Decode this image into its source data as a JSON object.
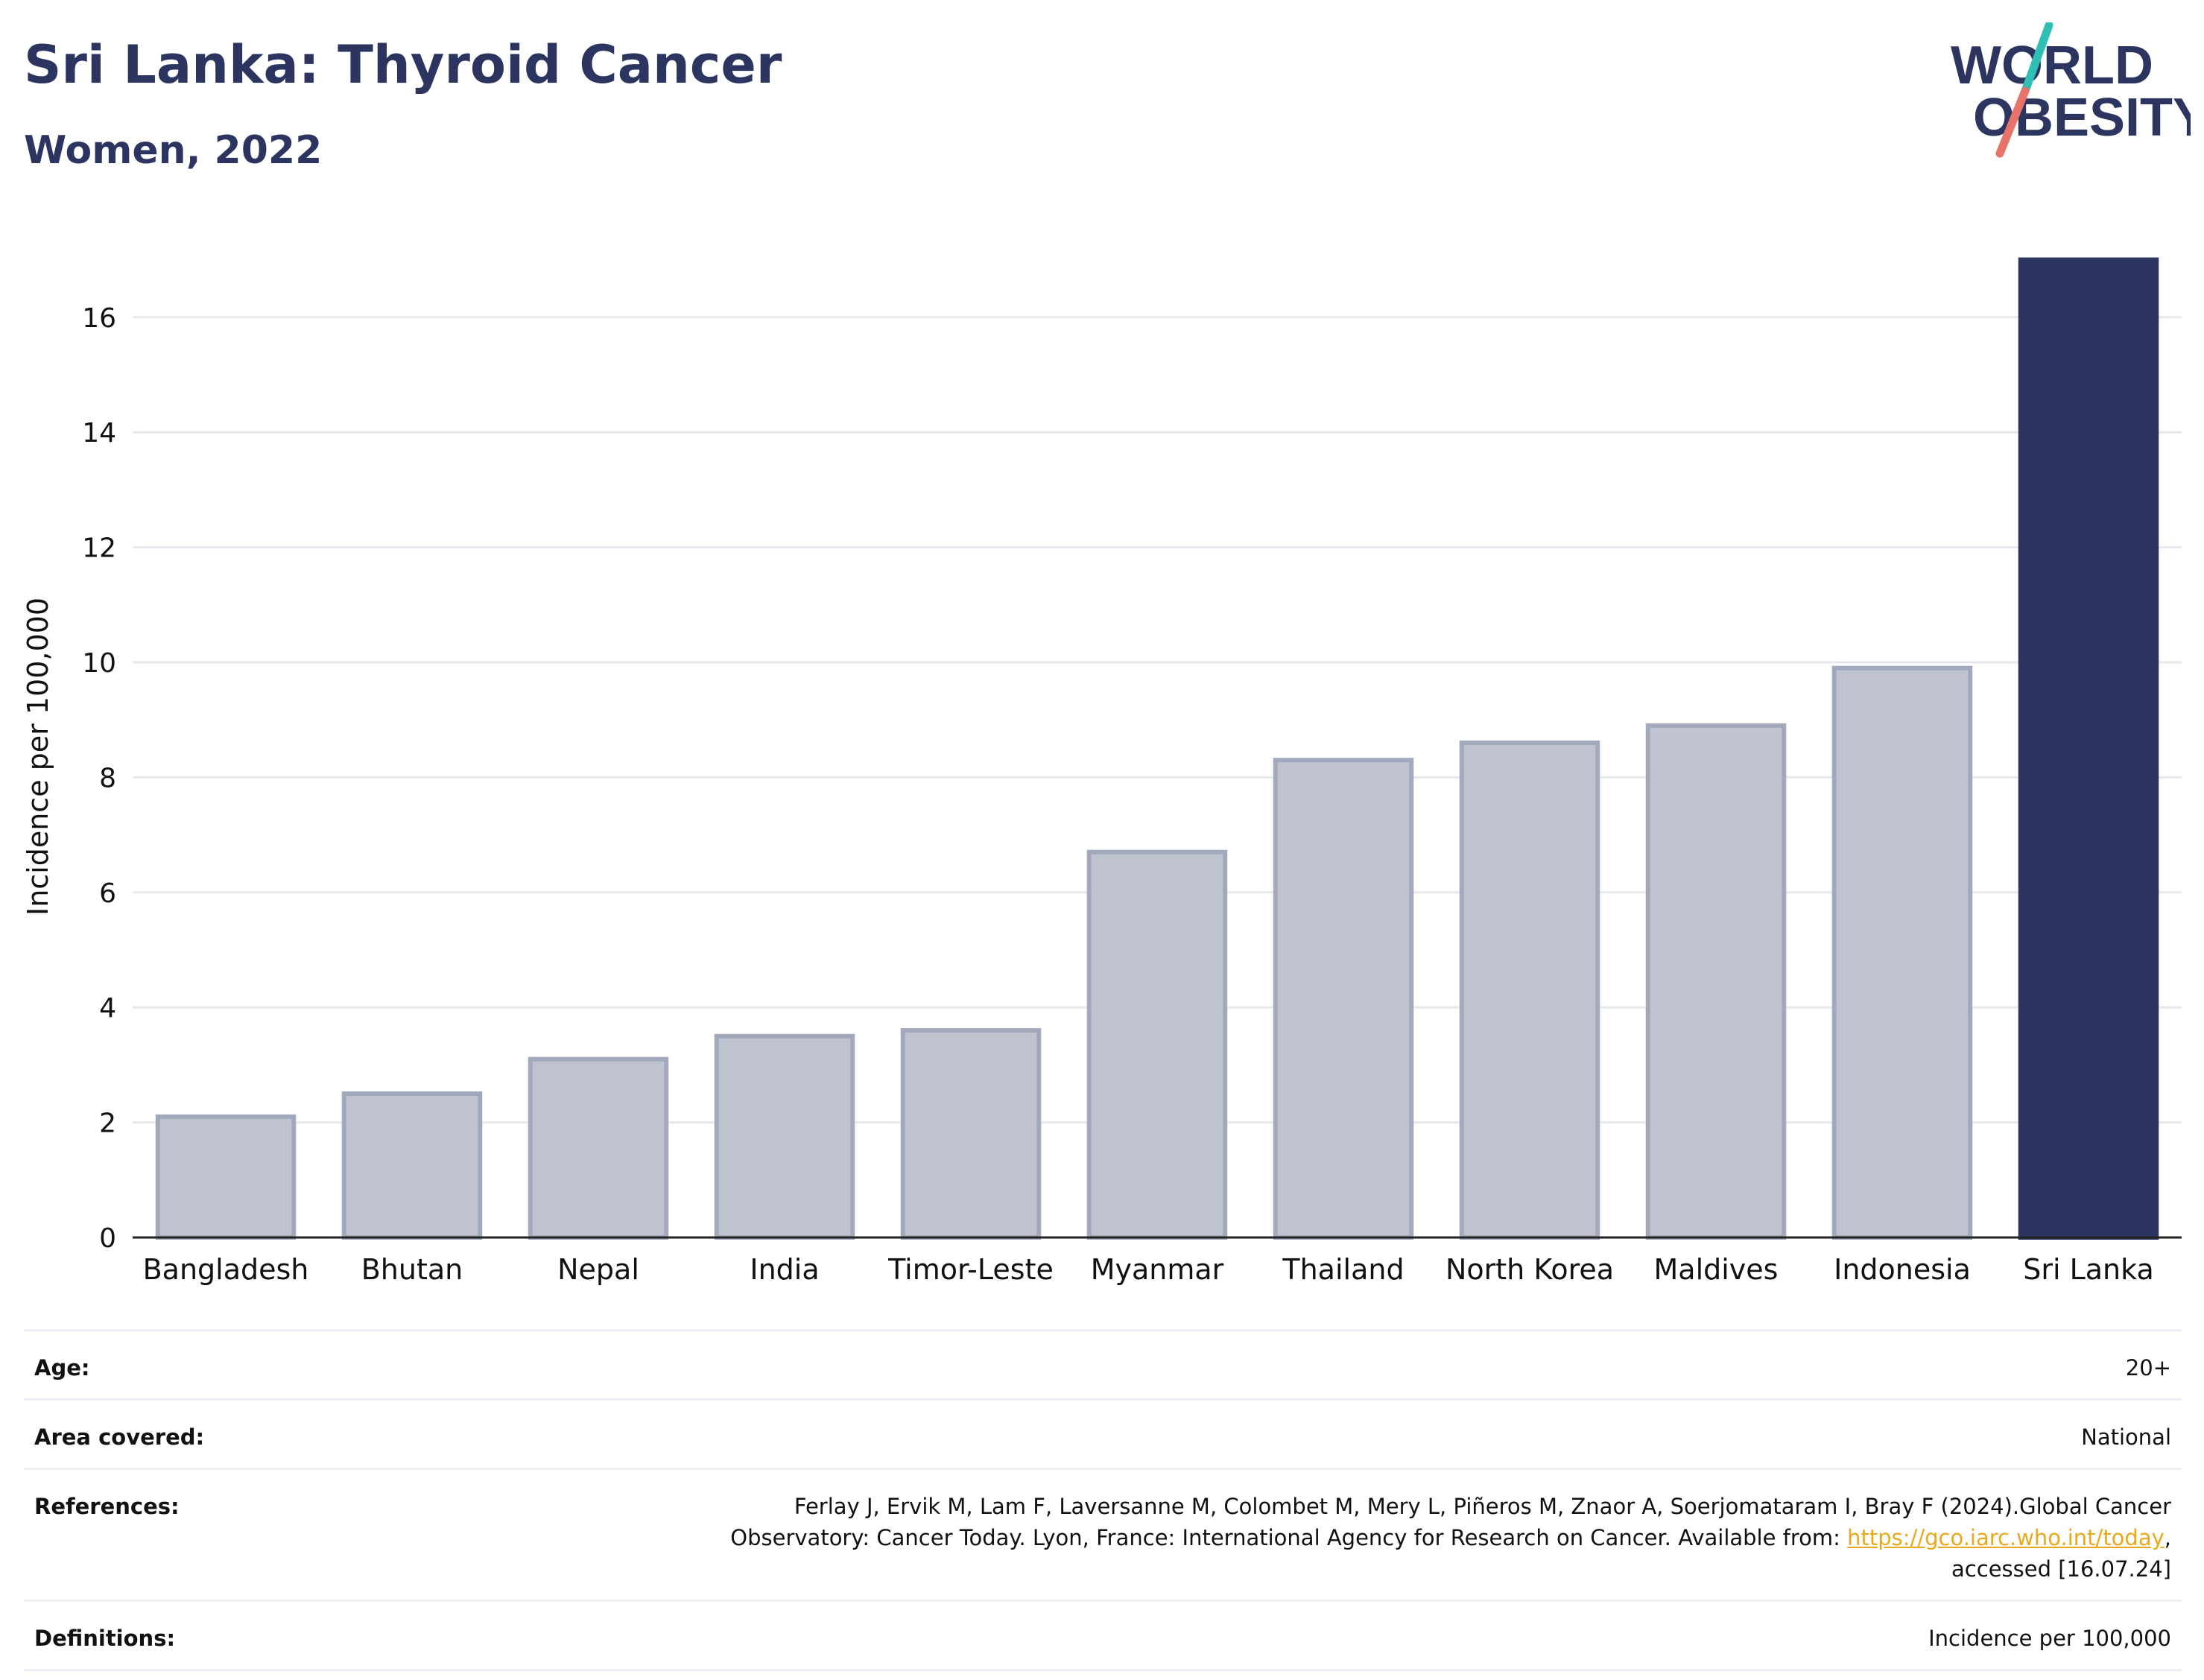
{
  "header": {
    "title": "Sri Lanka: Thyroid Cancer",
    "subtitle": "Women, 2022"
  },
  "logo": {
    "line1": "WORLD",
    "line2": "OBESITY",
    "text_color": "#2b3560",
    "slash_top_color": "#2fbfb5",
    "slash_bottom_color": "#e8736a"
  },
  "chart_data": {
    "type": "bar",
    "categories": [
      "Bangladesh",
      "Bhutan",
      "Nepal",
      "India",
      "Timor-Leste",
      "Myanmar",
      "Thailand",
      "North Korea",
      "Maldives",
      "Indonesia",
      "Sri Lanka"
    ],
    "values": [
      2.1,
      2.5,
      3.1,
      3.5,
      3.6,
      6.7,
      8.3,
      8.6,
      8.9,
      9.9,
      17.0
    ],
    "highlight": "Sri Lanka",
    "ylabel": "Incidence per 100,000",
    "ylim": [
      0,
      17.5
    ],
    "yticks": [
      0,
      2,
      4,
      6,
      8,
      10,
      12,
      14,
      16
    ],
    "grid": true,
    "colors": {
      "bar": "#bfc3d0",
      "bar_edge": "#a3a9bc",
      "highlight": "#2b3560"
    }
  },
  "info": {
    "age_label": "Age:",
    "age_value": "20+",
    "area_label": "Area covered:",
    "area_value": "National",
    "references_label": "References:",
    "references_line1": "Ferlay J, Ervik M, Lam F, Laversanne M, Colombet M, Mery L, Piñeros M, Znaor A, Soerjomataram I, Bray F (2024).Global Cancer",
    "references_line2": "Observatory: Cancer Today. Lyon, France: International Agency for Research on Cancer. Available from:",
    "references_link": "https://gco.iarc.who.int/today",
    "references_after_link": ",",
    "references_line3": "accessed [16.07.24]",
    "definitions_label": "Definitions:",
    "definitions_value": "Incidence per 100,000"
  }
}
